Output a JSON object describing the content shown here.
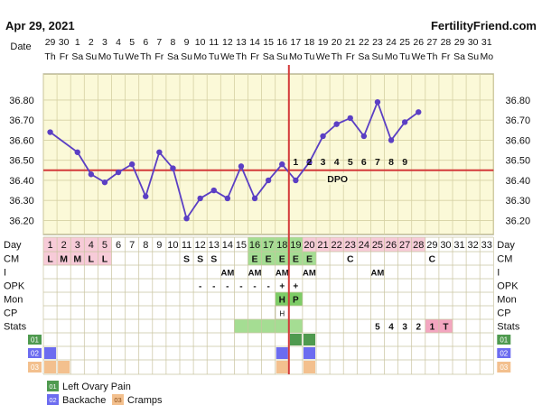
{
  "header": {
    "date": "Apr 29, 2021",
    "site": "FertilityFriend.com"
  },
  "colors": {
    "plot_bg": "#fbf9d8",
    "grid": "#d6d1a4",
    "line": "#5b3fc4",
    "coverline": "#d33a3a",
    "row_pink": "#f7cbd8",
    "fertile_green": "#a5dd93",
    "fertile_green_strong": "#7dcc66",
    "swatch_green": "#4f9a4f",
    "swatch_blue": "#6c6cf0",
    "swatch_orange": "#f3c08e",
    "stats_pink": "#f3a6c0"
  },
  "chart_data": {
    "type": "line",
    "title": "",
    "row_labels": {
      "date": "Date",
      "day": "Day",
      "cm": "CM",
      "i": "I",
      "opk": "OPK",
      "mon": "Mon",
      "cp": "CP",
      "stats": "Stats",
      "s1": "01",
      "s2": "02",
      "s3": "03"
    },
    "dates": [
      "29",
      "30",
      "1",
      "2",
      "3",
      "4",
      "5",
      "6",
      "7",
      "8",
      "9",
      "10",
      "11",
      "12",
      "13",
      "14",
      "15",
      "16",
      "17",
      "18",
      "19",
      "20",
      "21",
      "22",
      "23",
      "24",
      "25",
      "26",
      "27",
      "28",
      "29",
      "30",
      "31"
    ],
    "weekdays": [
      "Th",
      "Fr",
      "Sa",
      "Su",
      "Mo",
      "Tu",
      "We",
      "Th",
      "Fr",
      "Sa",
      "Su",
      "Mo",
      "Tu",
      "We",
      "Th",
      "Fr",
      "Sa",
      "Su",
      "Mo",
      "Tu",
      "We",
      "Th",
      "Fr",
      "Sa",
      "Su",
      "Mo",
      "Tu",
      "We",
      "Th",
      "Fr",
      "Sa",
      "Su",
      "Mo"
    ],
    "cycle_days": [
      "1",
      "2",
      "3",
      "4",
      "5",
      "6",
      "7",
      "8",
      "9",
      "10",
      "11",
      "12",
      "13",
      "14",
      "15",
      "16",
      "17",
      "18",
      "19",
      "20",
      "21",
      "22",
      "23",
      "24",
      "25",
      "26",
      "27",
      "28",
      "29",
      "30",
      "31",
      "32",
      "33"
    ],
    "y_ticks": [
      "36.80",
      "36.70",
      "36.60",
      "36.50",
      "36.40",
      "36.30",
      "36.20"
    ],
    "ylim": [
      36.13,
      36.93
    ],
    "temperatures": [
      36.64,
      null,
      36.54,
      36.43,
      36.39,
      36.44,
      36.48,
      36.32,
      36.54,
      36.46,
      36.21,
      36.31,
      36.35,
      36.31,
      36.47,
      36.31,
      36.4,
      36.48,
      36.4,
      36.49,
      36.62,
      36.68,
      36.71,
      36.62,
      36.79,
      36.6,
      36.69,
      36.74,
      null,
      null,
      null,
      null,
      null
    ],
    "dashed_segments": [
      [
        1,
        3
      ]
    ],
    "coverline": 36.45,
    "ovulation_day": "18",
    "dpo_numbers": [
      "1",
      "2",
      "3",
      "4",
      "5",
      "6",
      "7",
      "8",
      "9"
    ],
    "dpo_label": "DPO",
    "cm": [
      "L",
      "M",
      "M",
      "L",
      "L",
      "",
      "",
      "",
      "",
      "",
      "S",
      "S",
      "S",
      "",
      "",
      "E",
      "E",
      "E",
      "E",
      "E",
      "",
      "",
      "C",
      "",
      "",
      "",
      "",
      "",
      "C",
      "",
      "",
      "",
      ""
    ],
    "intercourse": [
      "",
      "",
      "",
      "",
      "",
      "",
      "",
      "",
      "",
      "",
      "",
      "",
      "",
      "AM",
      "",
      "AM",
      "",
      "AM",
      "",
      "AM",
      "",
      "",
      "",
      "",
      "AM",
      "",
      "",
      "",
      "",
      "",
      "",
      "",
      ""
    ],
    "opk": [
      "",
      "",
      "",
      "",
      "",
      "",
      "",
      "",
      "",
      "",
      "",
      "-",
      "-",
      "-",
      "-",
      "-",
      "-",
      "+",
      "+",
      "",
      "",
      "",
      "",
      "",
      "",
      "",
      "",
      "",
      "",
      "",
      "",
      "",
      ""
    ],
    "monitor": [
      "",
      "",
      "",
      "",
      "",
      "",
      "",
      "",
      "",
      "",
      "",
      "",
      "",
      "",
      "",
      "",
      "",
      "H",
      "P",
      "",
      "",
      "",
      "",
      "",
      "",
      "",
      "",
      "",
      "",
      "",
      "",
      "",
      ""
    ],
    "cp": [
      "",
      "",
      "",
      "",
      "",
      "",
      "",
      "",
      "",
      "",
      "",
      "",
      "",
      "",
      "",
      "",
      "",
      "H",
      "",
      "",
      "",
      "",
      "",
      "",
      "",
      "",
      "",
      "",
      "",
      "",
      "",
      "",
      ""
    ],
    "stats": [
      "",
      "",
      "",
      "",
      "",
      "",
      "",
      "",
      "",
      "",
      "",
      "",
      "",
      "",
      "",
      "",
      "",
      "",
      "",
      "",
      "",
      "",
      "",
      "",
      "5",
      "4",
      "3",
      "2",
      "1",
      "T",
      "",
      "",
      ""
    ],
    "symptom_rows": {
      "s1": [
        18,
        19
      ],
      "s2": [
        0,
        17,
        19
      ],
      "s3": [
        0,
        1,
        17,
        19
      ]
    },
    "legend": [
      {
        "code": "01",
        "label": "Left Ovary Pain",
        "color": "#4f9a4f"
      },
      {
        "code": "02",
        "label": "Backache",
        "color": "#6c6cf0"
      },
      {
        "code": "03",
        "label": "Cramps",
        "color": "#f3c08e"
      }
    ],
    "grid": true
  }
}
